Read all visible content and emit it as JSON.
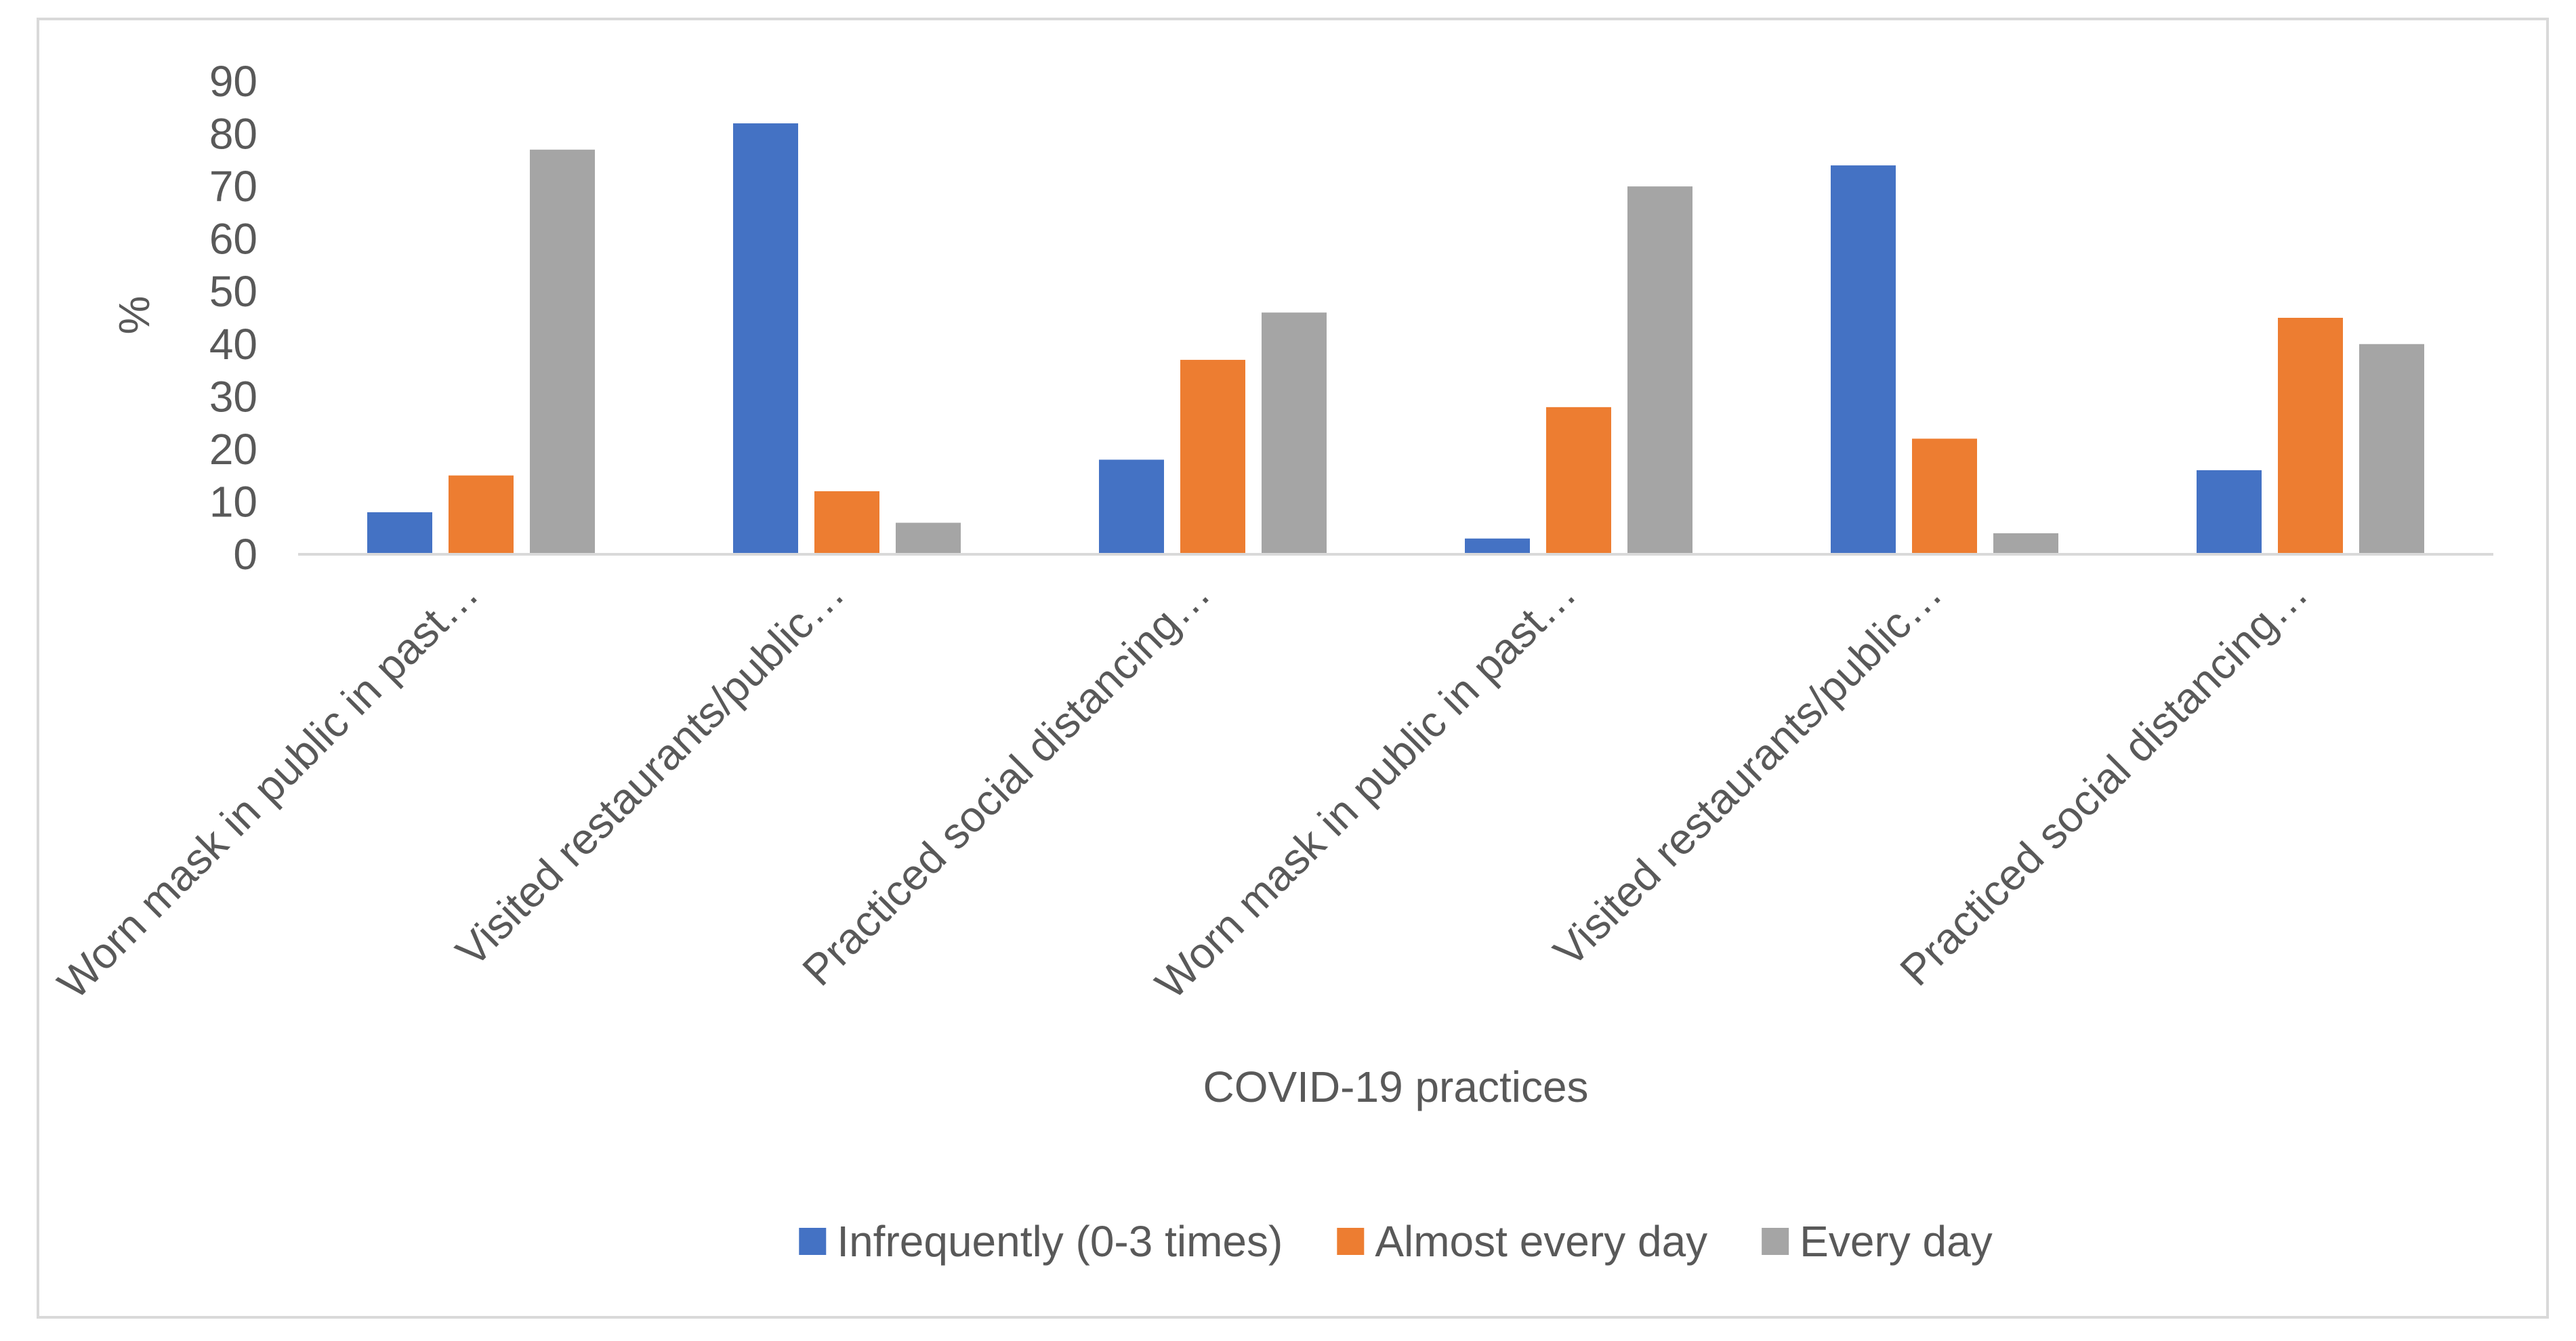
{
  "chart_data": {
    "type": "bar",
    "title": "",
    "xlabel": "COVID-19 practices",
    "ylabel": "%",
    "ylim": [
      0,
      90
    ],
    "yticks": [
      0,
      10,
      20,
      30,
      40,
      50,
      60,
      70,
      80,
      90
    ],
    "grid": false,
    "legend_position": "bottom",
    "categories": [
      "Worn mask in public in past…",
      "Visited restaurants/public…",
      "Practiced social distancing…",
      "Worn mask in public in past…",
      "Visited restaurants/public…",
      "Practiced social distancing…"
    ],
    "series": [
      {
        "name": "Infrequently (0-3 times)",
        "color": "#4472C4",
        "values": [
          8,
          82,
          18,
          3,
          74,
          16
        ]
      },
      {
        "name": "Almost every day",
        "color": "#ED7D31",
        "values": [
          15,
          12,
          37,
          28,
          22,
          45
        ]
      },
      {
        "name": "Every day",
        "color": "#A5A5A5",
        "values": [
          77,
          6,
          46,
          70,
          4,
          40
        ]
      }
    ]
  }
}
